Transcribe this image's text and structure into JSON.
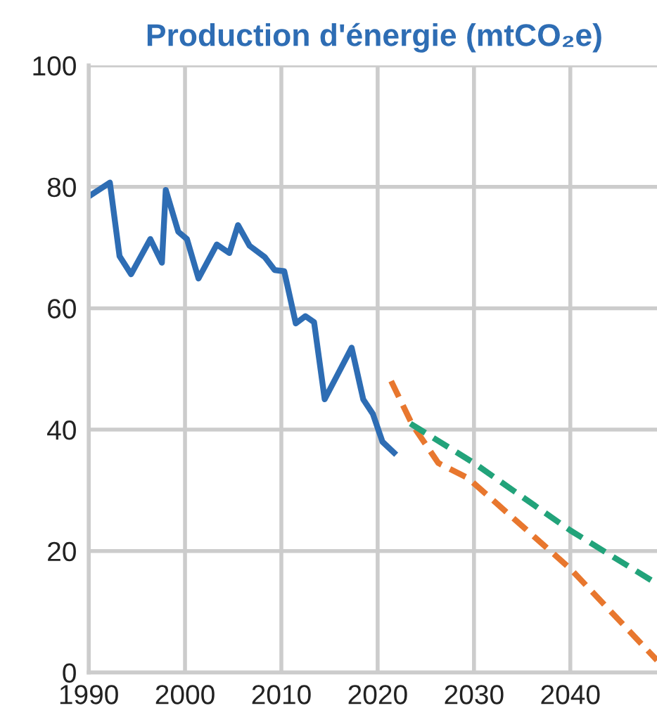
{
  "chart_data": {
    "type": "line",
    "title": "Production d'énergie (mtCO₂e)",
    "xlim": [
      1990,
      2049
    ],
    "ylim": [
      0,
      100
    ],
    "xticks": [
      1990,
      2000,
      2010,
      2020,
      2030,
      2040
    ],
    "yticks": [
      0,
      20,
      40,
      60,
      80,
      100
    ],
    "grid": true,
    "legend": false,
    "series": [
      {
        "color": "#2e6db4",
        "line_style": "solid",
        "x": [
          1990,
          1992.2,
          1993.2,
          1994.4,
          1996.4,
          1997.6,
          1998,
          1999.3,
          2000.2,
          2001.4,
          2003.3,
          2004.6,
          2005.5,
          2006.7,
          2008.3,
          2009.3,
          2010.3,
          2011.5,
          2012.5,
          2013.4,
          2014.5,
          2017.3,
          2018.5,
          2019.5,
          2020.5,
          2021.7
        ],
        "values": [
          78.4,
          80.7,
          68.6,
          65.6,
          71.4,
          67.5,
          79.5,
          72.6,
          71.4,
          64.9,
          70.5,
          69.1,
          73.7,
          70.3,
          68.4,
          66.3,
          66.1,
          57.5,
          58.7,
          57.7,
          45,
          53.5,
          45,
          42.6,
          38,
          36.2
        ]
      },
      {
        "color": "#e8772e",
        "line_style": "dashed",
        "x": [
          2021.4,
          2023.6,
          2026.3,
          2029.4,
          2040,
          2049
        ],
        "values": [
          48,
          40.8,
          34.5,
          32,
          17.1,
          2
        ]
      },
      {
        "color": "#22a37a",
        "line_style": "dashed",
        "x": [
          2023.4,
          2030,
          2040,
          2049
        ],
        "values": [
          41,
          34.5,
          23.4,
          14.6
        ]
      }
    ]
  }
}
